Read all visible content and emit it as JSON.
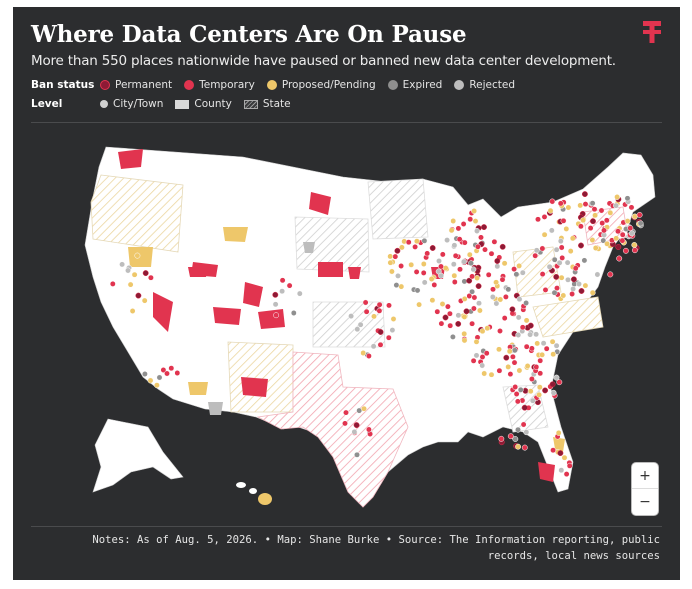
{
  "header": {
    "title": "Where Data Centers Are On Pause",
    "subtitle": "More than 550 places nationwide have paused or banned new data center development."
  },
  "legend": {
    "ban_status_label": "Ban status",
    "ban_status": [
      {
        "label": "Permanent",
        "color": "#8e1a35"
      },
      {
        "label": "Temporary",
        "color": "#e1344f"
      },
      {
        "label": "Proposed/Pending",
        "color": "#eec76a"
      },
      {
        "label": "Expired",
        "color": "#8f8f8f"
      },
      {
        "label": "Rejected",
        "color": "#bdbdbd"
      }
    ],
    "level_label": "Level",
    "level": [
      {
        "label": "City/Town",
        "icon": "dot"
      },
      {
        "label": "County",
        "icon": "square"
      },
      {
        "label": "State",
        "icon": "hatched-square"
      }
    ]
  },
  "zoom": {
    "in": "+",
    "out": "−"
  },
  "footer": {
    "line1": "Notes: As of Aug. 5, 2026. • Map: Shane Burke • Source: The Information reporting, public",
    "line2": "records, local news sources"
  },
  "colors": {
    "background": "#2c2d2f",
    "land": "#ffffff",
    "permanent": "#8e1a35",
    "temporary": "#e1344f",
    "proposed": "#eec76a",
    "expired": "#8f8f8f",
    "rejected": "#bdbdbd",
    "brand": "#e1344f"
  }
}
